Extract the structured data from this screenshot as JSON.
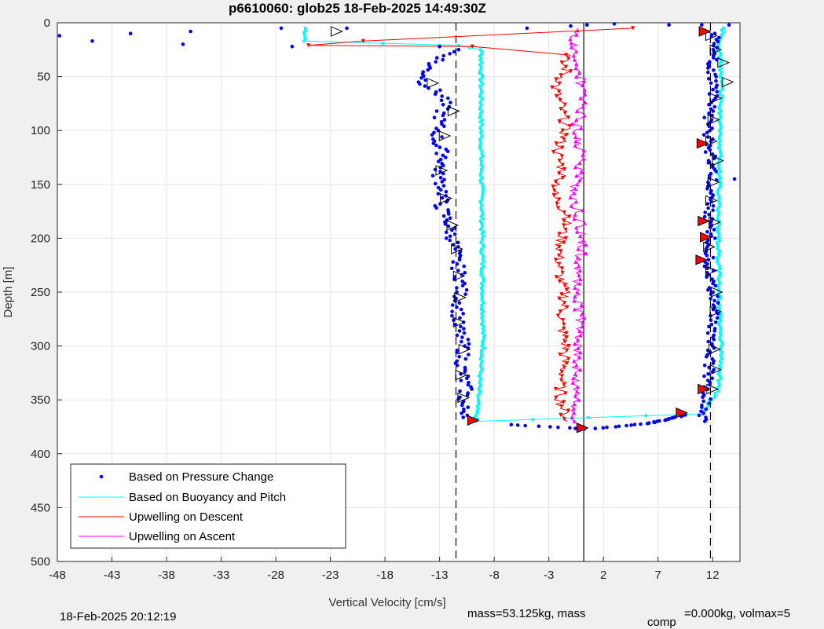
{
  "chart_data": {
    "type": "scatter",
    "title": "p6610060: glob25 18-Feb-2025 14:49:30Z",
    "xlabel": "Vertical Velocity [cm/s]",
    "ylabel": "Depth [m]",
    "xlim": [
      -48,
      14.5
    ],
    "ylim": [
      0,
      500
    ],
    "y_reversed": true,
    "grid": true,
    "xticks": [
      "-48",
      "-43",
      "-38",
      "-33",
      "-28",
      "-23",
      "-18",
      "-13",
      "-8",
      "-3",
      "2",
      "7",
      "12"
    ],
    "xtick_values": [
      -48,
      -43,
      -38,
      -33,
      -28,
      -23,
      -18,
      -13,
      -8,
      -3,
      2,
      7,
      12
    ],
    "yticks": [
      "0",
      "50",
      "100",
      "150",
      "200",
      "250",
      "300",
      "350",
      "400",
      "450",
      "500"
    ],
    "ytick_values": [
      0,
      50,
      100,
      150,
      200,
      250,
      300,
      350,
      400,
      450,
      500
    ],
    "reference_lines": [
      {
        "x": -11.5,
        "style": "dashed"
      },
      {
        "x": 11.8,
        "style": "dashed"
      },
      {
        "x": 0.2,
        "style": "solid"
      }
    ],
    "legend_placement": "bottom-left",
    "series": [
      {
        "name": "Based on Pressure Change",
        "color": "#0000ff",
        "marker": "dot",
        "descent": [
          [
            -11.4,
            25
          ],
          [
            -14,
            40
          ],
          [
            -14.5,
            55
          ],
          [
            -12.5,
            70
          ],
          [
            -13,
            90
          ],
          [
            -13.3,
            110
          ],
          [
            -12.5,
            125
          ],
          [
            -13.2,
            140
          ],
          [
            -12.6,
            155
          ],
          [
            -12.9,
            170
          ],
          [
            -12.2,
            185
          ],
          [
            -11.8,
            200
          ],
          [
            -11.5,
            220
          ],
          [
            -11,
            240
          ],
          [
            -11.2,
            260
          ],
          [
            -11.4,
            280
          ],
          [
            -10.8,
            300
          ],
          [
            -11,
            320
          ],
          [
            -10.6,
            340
          ],
          [
            -11,
            355
          ],
          [
            -10,
            370
          ]
        ],
        "ascent": [
          [
            11,
            370
          ],
          [
            11.4,
            355
          ],
          [
            11.4,
            340
          ],
          [
            11.7,
            320
          ],
          [
            11.8,
            300
          ],
          [
            12,
            280
          ],
          [
            12.2,
            260
          ],
          [
            11.9,
            240
          ],
          [
            11.6,
            220
          ],
          [
            11.9,
            200
          ],
          [
            11.5,
            180
          ],
          [
            11.8,
            160
          ],
          [
            12.1,
            140
          ],
          [
            11.8,
            120
          ],
          [
            11.5,
            100
          ],
          [
            11.8,
            80
          ],
          [
            12.2,
            60
          ],
          [
            11.9,
            40
          ],
          [
            12,
            25
          ],
          [
            12.2,
            10
          ]
        ],
        "surface": [
          [
            -47.8,
            12
          ],
          [
            -44.8,
            17
          ],
          [
            -41.3,
            10
          ],
          [
            -35.8,
            8
          ],
          [
            -36.5,
            20
          ],
          [
            -27.5,
            5
          ],
          [
            -26.5,
            22
          ],
          [
            -21.5,
            5
          ],
          [
            -13,
            22
          ],
          [
            -5,
            5
          ],
          [
            -1,
            3
          ],
          [
            0.5,
            2
          ],
          [
            3,
            1
          ],
          [
            8,
            2
          ],
          [
            11,
            2
          ],
          [
            13.5,
            2
          ],
          [
            14,
            145
          ]
        ],
        "bottom": [
          [
            -6.5,
            373
          ],
          [
            -5,
            374
          ],
          [
            -3,
            375
          ],
          [
            -1,
            376
          ],
          [
            0.2,
            377
          ],
          [
            2,
            376
          ],
          [
            4,
            374
          ],
          [
            6,
            372
          ],
          [
            8,
            368
          ],
          [
            9.5,
            364
          ]
        ]
      },
      {
        "name": "Based on Buoyancy and Pitch",
        "color": "#00ffff",
        "marker": "dot",
        "path": [
          [
            -25.3,
            5
          ],
          [
            -25.3,
            17
          ],
          [
            -11.3,
            21
          ],
          [
            -9.2,
            25
          ],
          [
            -9.2,
            100
          ],
          [
            -9.1,
            200
          ],
          [
            -9,
            300
          ],
          [
            -9.7,
            370
          ],
          [
            11,
            363
          ],
          [
            12.6,
            340
          ],
          [
            12.8,
            300
          ],
          [
            12.6,
            250
          ],
          [
            12.5,
            200
          ],
          [
            12.6,
            150
          ],
          [
            12.7,
            100
          ],
          [
            12.8,
            50
          ],
          [
            12.6,
            20
          ],
          [
            13,
            5
          ]
        ]
      },
      {
        "name": "Upwelling on Descent",
        "color": "#ff0000",
        "marker": "triangle-down",
        "spike": [
          [
            4.7,
            5
          ],
          [
            -20,
            17
          ],
          [
            -25,
            21
          ],
          [
            -10,
            22
          ]
        ],
        "path": [
          [
            -1,
            30
          ],
          [
            -1.8,
            35
          ],
          [
            -1.4,
            45
          ],
          [
            -2.4,
            60
          ],
          [
            -1.8,
            80
          ],
          [
            -1.5,
            100
          ],
          [
            -2.2,
            120
          ],
          [
            -1.7,
            140
          ],
          [
            -2.6,
            160
          ],
          [
            -1.2,
            180
          ],
          [
            -1.9,
            200
          ],
          [
            -2.1,
            230
          ],
          [
            -1.5,
            250
          ],
          [
            -1.9,
            280
          ],
          [
            -1.5,
            300
          ],
          [
            -1.8,
            330
          ],
          [
            -2,
            350
          ],
          [
            -1.3,
            370
          ]
        ]
      },
      {
        "name": "Upwelling on Ascent",
        "color": "#ff00ff",
        "marker": "triangle-up",
        "path": [
          [
            -0.5,
            370
          ],
          [
            -0.6,
            340
          ],
          [
            -0.4,
            310
          ],
          [
            0.1,
            280
          ],
          [
            -0.6,
            250
          ],
          [
            -0.1,
            220
          ],
          [
            0,
            190
          ],
          [
            -0.7,
            160
          ],
          [
            0,
            130
          ],
          [
            -0.5,
            100
          ],
          [
            0.1,
            70
          ],
          [
            -0.2,
            40
          ],
          [
            -0.7,
            15
          ],
          [
            -0.3,
            5
          ]
        ]
      }
    ],
    "markers": {
      "open_descent": [
        [
          -22.5,
          8
        ],
        [
          -13.7,
          56
        ],
        [
          -11.8,
          82
        ],
        [
          -12.6,
          105
        ],
        [
          -12.9,
          137
        ],
        [
          -12.5,
          163
        ],
        [
          -11.9,
          188
        ],
        [
          -11.5,
          210
        ],
        [
          -11.3,
          235
        ],
        [
          -11.2,
          255
        ],
        [
          -11.3,
          278
        ],
        [
          -10.8,
          303
        ],
        [
          -11.1,
          327
        ],
        [
          -10.9,
          348
        ]
      ],
      "open_ascent": [
        [
          11.8,
          12
        ],
        [
          12.2,
          25
        ],
        [
          12.9,
          37
        ],
        [
          13.3,
          55
        ],
        [
          12.2,
          70
        ],
        [
          12,
          90
        ],
        [
          11.8,
          110
        ],
        [
          12.4,
          128
        ],
        [
          12,
          148
        ],
        [
          11.8,
          165
        ],
        [
          12.1,
          185
        ],
        [
          11.6,
          208
        ],
        [
          11.8,
          230
        ],
        [
          12.3,
          250
        ],
        [
          12.2,
          268
        ],
        [
          12.1,
          303
        ],
        [
          12.2,
          322
        ],
        [
          11.9,
          340
        ]
      ],
      "filled_descent": [
        [
          11.2,
          8
        ],
        [
          11,
          112
        ],
        [
          11.1,
          184
        ],
        [
          11.3,
          199
        ],
        [
          10.9,
          220
        ],
        [
          11.1,
          340
        ],
        [
          9.1,
          362
        ],
        [
          -10,
          369
        ]
      ],
      "filled_bottom": [
        [
          0,
          376
        ]
      ]
    }
  },
  "footer": {
    "timestamp": "18-Feb-2025 20:12:19",
    "mass_text": "mass=53.125kg, mass",
    "comp_subscript": "comp",
    "comp_text": "=0.000kg, volmax=5"
  }
}
